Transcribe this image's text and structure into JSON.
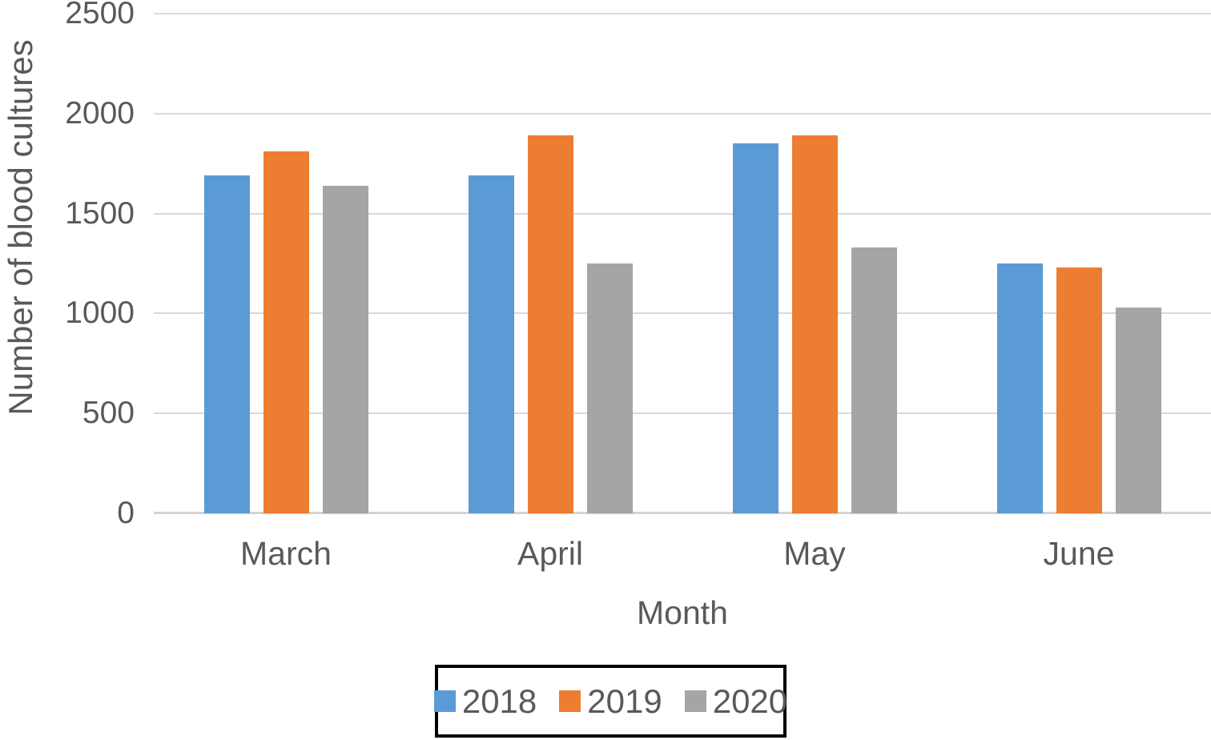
{
  "chart_data": {
    "type": "bar",
    "title": "",
    "categories": [
      "March",
      "April",
      "May",
      "June"
    ],
    "series": [
      {
        "name": "2018",
        "color": "#5B9BD5",
        "values": [
          1690,
          1690,
          1850,
          1250
        ]
      },
      {
        "name": "2019",
        "color": "#ED7D31",
        "values": [
          1810,
          1890,
          1890,
          1230
        ]
      },
      {
        "name": "2020",
        "color": "#A5A5A5",
        "values": [
          1640,
          1250,
          1330,
          1030
        ]
      }
    ],
    "xlabel": "Month",
    "ylabel": "Number of blood cultures",
    "ylim": [
      0,
      2500
    ],
    "yticks": [
      0,
      500,
      1000,
      1500,
      2000,
      2500
    ],
    "grid": true,
    "gridline_color": "#D9D9D9",
    "axis_text_color": "#595959",
    "legend_position": "bottom",
    "legend_border_color": "#000000"
  }
}
